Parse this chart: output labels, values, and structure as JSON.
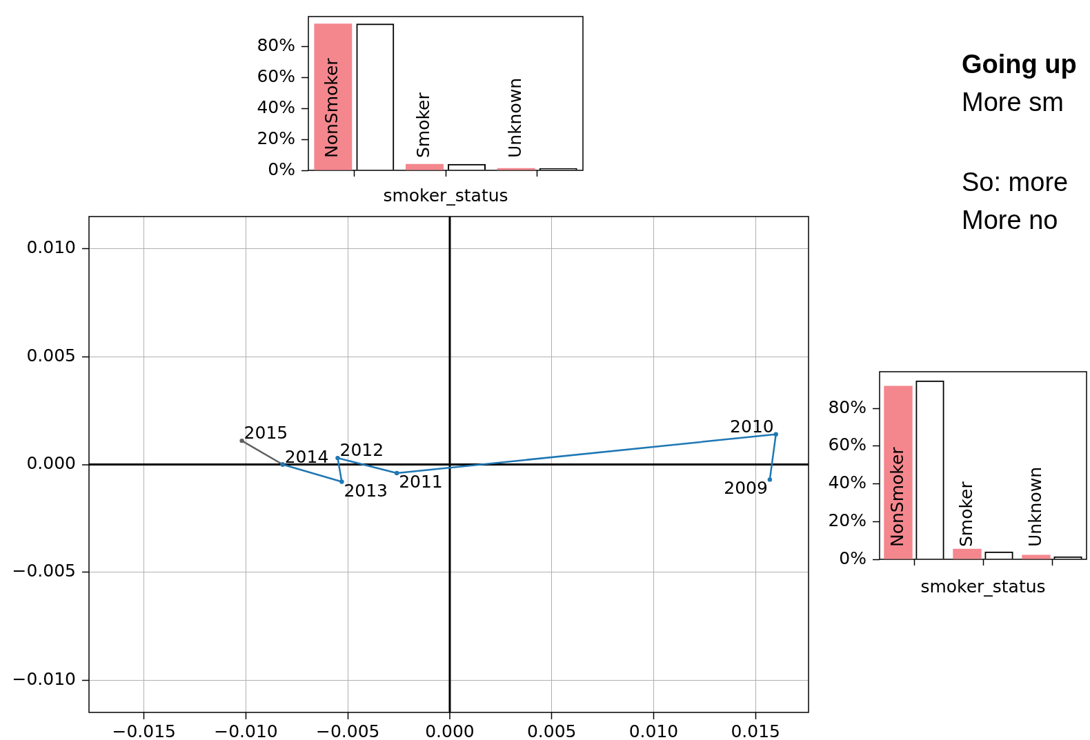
{
  "chart_data": [
    {
      "type": "bar",
      "xlabel": "smoker_status",
      "categories": [
        "NonSmoker",
        "Smoker",
        "Unknown"
      ],
      "series": [
        {
          "color": "#f4878e",
          "values": [
            94.9,
            4.1,
            1.4
          ]
        },
        {
          "color": "#000000",
          "values": [
            94.9,
            4.1,
            1.4
          ]
        }
      ],
      "ylim": [
        0,
        99.5
      ],
      "yticks": [
        {
          "value": 0,
          "label": "0%"
        },
        {
          "value": 20,
          "label": "20%"
        },
        {
          "value": 40,
          "label": "40%"
        },
        {
          "value": 60,
          "label": "60%"
        },
        {
          "value": 80,
          "label": "80%"
        }
      ]
    },
    {
      "type": "other",
      "title": "Going up",
      "annotations": [
        "More sm",
        "So: more",
        "More no"
      ]
    },
    {
      "type": "line",
      "series": [
        {
          "color": "#1f77b4",
          "x": [
            0.0157,
            0.016,
            -0.0026,
            -0.0055,
            -0.0053,
            -0.0082
          ],
          "values": [
            -0.0007,
            0.0014,
            -0.0004,
            0.0003,
            -0.0008,
            0.0
          ]
        },
        {
          "color": "#606060",
          "x": [
            -0.0082,
            -0.0102
          ],
          "values": [
            0.0,
            0.0011
          ]
        }
      ],
      "annotations": [
        {
          "text": "2009",
          "x": 0.0157,
          "y": -0.0007
        },
        {
          "text": "2010",
          "x": 0.016,
          "y": 0.0014
        },
        {
          "text": "2011",
          "x": -0.0026,
          "y": -0.0004
        },
        {
          "text": "2012",
          "x": -0.0055,
          "y": 0.0003
        },
        {
          "text": "2013",
          "x": -0.0053,
          "y": -0.0008
        },
        {
          "text": "2014",
          "x": -0.0082,
          "y": 0.0
        },
        {
          "text": "2015",
          "x": -0.0102,
          "y": 0.0011
        }
      ],
      "xlim": [
        -0.0177,
        0.0176
      ],
      "ylim": [
        -0.0115,
        0.0115
      ],
      "xticks": [
        {
          "value": -0.015,
          "label": "−0.015"
        },
        {
          "value": -0.01,
          "label": "−0.010"
        },
        {
          "value": -0.005,
          "label": "−0.005"
        },
        {
          "value": 0,
          "label": "0.000"
        },
        {
          "value": 0.005,
          "label": "0.005"
        },
        {
          "value": 0.01,
          "label": "0.010"
        },
        {
          "value": 0.015,
          "label": "0.015"
        }
      ],
      "yticks": [
        {
          "value": -0.01,
          "label": "−0.010"
        },
        {
          "value": -0.005,
          "label": "−0.005"
        },
        {
          "value": 0,
          "label": "0.000"
        },
        {
          "value": 0.005,
          "label": "0.005"
        },
        {
          "value": 0.01,
          "label": "0.010"
        }
      ],
      "grid": true,
      "marker": "circle"
    },
    {
      "type": "bar",
      "xlabel": "smoker_status",
      "categories": [
        "NonSmoker",
        "Smoker",
        "Unknown"
      ],
      "series": [
        {
          "color": "#f4878e",
          "values": [
            92.0,
            5.6,
            2.4
          ]
        },
        {
          "color": "#000000",
          "values": [
            94.8,
            4.1,
            1.5
          ]
        }
      ],
      "ylim": [
        0,
        99.5
      ],
      "yticks": [
        {
          "value": 0,
          "label": "0%"
        },
        {
          "value": 20,
          "label": "20%"
        },
        {
          "value": 40,
          "label": "40%"
        },
        {
          "value": 60,
          "label": "60%"
        },
        {
          "value": 80,
          "label": "80%"
        }
      ]
    }
  ]
}
